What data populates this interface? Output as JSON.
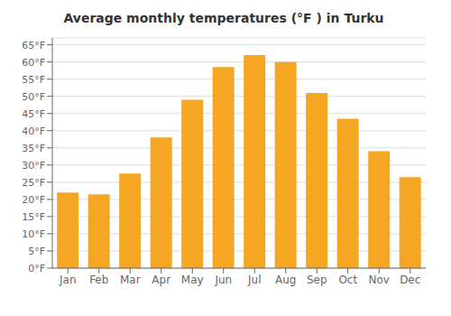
{
  "chart_data": {
    "type": "bar",
    "title": "Average monthly temperatures (°F ) in Turku",
    "categories": [
      "Jan",
      "Feb",
      "Mar",
      "Apr",
      "May",
      "Jun",
      "Jul",
      "Aug",
      "Sep",
      "Oct",
      "Nov",
      "Dec"
    ],
    "values": [
      22,
      21.5,
      27.5,
      38,
      49,
      58.5,
      62,
      60,
      51,
      43.5,
      34,
      26.5
    ],
    "color": "#F5A623",
    "ylim": [
      0,
      67
    ],
    "yticks": [
      {
        "value": 0,
        "label": "0°F"
      },
      {
        "value": 5,
        "label": "5°F"
      },
      {
        "value": 10,
        "label": "10°F"
      },
      {
        "value": 15,
        "label": "15°F"
      },
      {
        "value": 20,
        "label": "20°F"
      },
      {
        "value": 25,
        "label": "25°F"
      },
      {
        "value": 30,
        "label": "30°F"
      },
      {
        "value": 35,
        "label": "35°F"
      },
      {
        "value": 40,
        "label": "40°F"
      },
      {
        "value": 45,
        "label": "45°F"
      },
      {
        "value": 50,
        "label": "50°F"
      },
      {
        "value": 55,
        "label": "55°F"
      },
      {
        "value": 60,
        "label": "60°F"
      },
      {
        "value": 65,
        "label": "65°F"
      }
    ],
    "grid": true
  }
}
